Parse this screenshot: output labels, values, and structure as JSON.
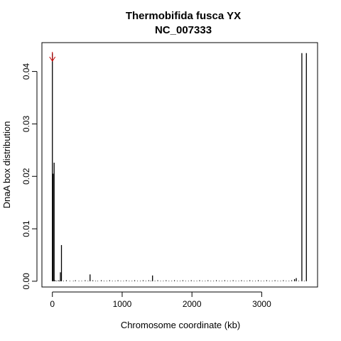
{
  "chart_data": {
    "type": "bar",
    "title": "Thermobifida fusca YX",
    "subtitle": "NC_007333",
    "xlabel": "Chromosome coordinate (kb)",
    "ylabel": "DnaA box distribution",
    "xlim": [
      -150,
      3800
    ],
    "ylim": [
      -0.0011,
      0.0455
    ],
    "x_ticks": [
      0,
      1000,
      2000,
      3000
    ],
    "y_ticks": [
      0.0,
      0.01,
      0.02,
      0.03,
      0.04
    ],
    "x_tick_labels": [
      "0",
      "1000",
      "2000",
      "3000"
    ],
    "y_tick_labels": [
      "0.00",
      "0.01",
      "0.02",
      "0.03",
      "0.04"
    ],
    "grid": false,
    "arrow_at_x": 0,
    "arrow_color": "#cc0000",
    "bar_color": "#000000",
    "points": [
      {
        "x": 0,
        "y": 0.0435
      },
      {
        "x": 10,
        "y": 0.0205
      },
      {
        "x": 25,
        "y": 0.0226
      },
      {
        "x": 115,
        "y": 0.0017
      },
      {
        "x": 130,
        "y": 0.0069
      },
      {
        "x": 540,
        "y": 0.0013
      },
      {
        "x": 1435,
        "y": 0.0011
      },
      {
        "x": 3470,
        "y": 0.0004
      },
      {
        "x": 3495,
        "y": 0.0006
      },
      {
        "x": 3575,
        "y": 0.0435
      },
      {
        "x": 3640,
        "y": 0.0435
      }
    ],
    "small_bars": [
      [
        40,
        0.0002
      ],
      [
        60,
        0.0001
      ],
      [
        85,
        0.0002
      ],
      [
        100,
        0.0001
      ],
      [
        160,
        0.0001
      ],
      [
        200,
        0.0002
      ],
      [
        250,
        0.0001
      ],
      [
        300,
        0.0001
      ],
      [
        330,
        0.0002
      ],
      [
        380,
        0.0001
      ],
      [
        420,
        0.0001
      ],
      [
        470,
        0.0002
      ],
      [
        510,
        0.0001
      ],
      [
        580,
        0.0002
      ],
      [
        620,
        0.0001
      ],
      [
        650,
        0.0001
      ],
      [
        700,
        0.0002
      ],
      [
        740,
        0.0001
      ],
      [
        780,
        0.0001
      ],
      [
        820,
        0.0002
      ],
      [
        860,
        0.0001
      ],
      [
        900,
        0.0001
      ],
      [
        940,
        0.0002
      ],
      [
        980,
        0.0001
      ],
      [
        1020,
        0.0001
      ],
      [
        1060,
        0.0002
      ],
      [
        1100,
        0.0001
      ],
      [
        1140,
        0.0001
      ],
      [
        1180,
        0.0002
      ],
      [
        1220,
        0.0001
      ],
      [
        1260,
        0.0001
      ],
      [
        1300,
        0.0002
      ],
      [
        1340,
        0.0001
      ],
      [
        1380,
        0.0002
      ],
      [
        1410,
        0.0001
      ],
      [
        1470,
        0.0001
      ],
      [
        1510,
        0.0002
      ],
      [
        1550,
        0.0001
      ],
      [
        1590,
        0.0001
      ],
      [
        1630,
        0.0002
      ],
      [
        1670,
        0.0001
      ],
      [
        1710,
        0.0001
      ],
      [
        1750,
        0.0002
      ],
      [
        1790,
        0.0001
      ],
      [
        1830,
        0.0001
      ],
      [
        1870,
        0.0002
      ],
      [
        1910,
        0.0001
      ],
      [
        1950,
        0.0001
      ],
      [
        1990,
        0.0002
      ],
      [
        2030,
        0.0001
      ],
      [
        2070,
        0.0001
      ],
      [
        2110,
        0.0002
      ],
      [
        2150,
        0.0001
      ],
      [
        2190,
        0.0001
      ],
      [
        2230,
        0.0002
      ],
      [
        2270,
        0.0001
      ],
      [
        2310,
        0.0001
      ],
      [
        2350,
        0.0002
      ],
      [
        2390,
        0.0001
      ],
      [
        2430,
        0.0001
      ],
      [
        2470,
        0.0002
      ],
      [
        2510,
        0.0001
      ],
      [
        2550,
        0.0001
      ],
      [
        2590,
        0.0002
      ],
      [
        2630,
        0.0001
      ],
      [
        2670,
        0.0001
      ],
      [
        2710,
        0.0002
      ],
      [
        2750,
        0.0001
      ],
      [
        2790,
        0.0001
      ],
      [
        2830,
        0.0002
      ],
      [
        2870,
        0.0001
      ],
      [
        2910,
        0.0001
      ],
      [
        2950,
        0.0002
      ],
      [
        2990,
        0.0001
      ],
      [
        3030,
        0.0001
      ],
      [
        3070,
        0.0002
      ],
      [
        3110,
        0.0001
      ],
      [
        3150,
        0.0001
      ],
      [
        3190,
        0.0002
      ],
      [
        3230,
        0.0001
      ],
      [
        3270,
        0.0001
      ],
      [
        3310,
        0.0002
      ],
      [
        3350,
        0.0001
      ],
      [
        3390,
        0.0001
      ],
      [
        3430,
        0.0002
      ],
      [
        3530,
        0.0001
      ],
      [
        3610,
        0.0001
      ]
    ]
  }
}
